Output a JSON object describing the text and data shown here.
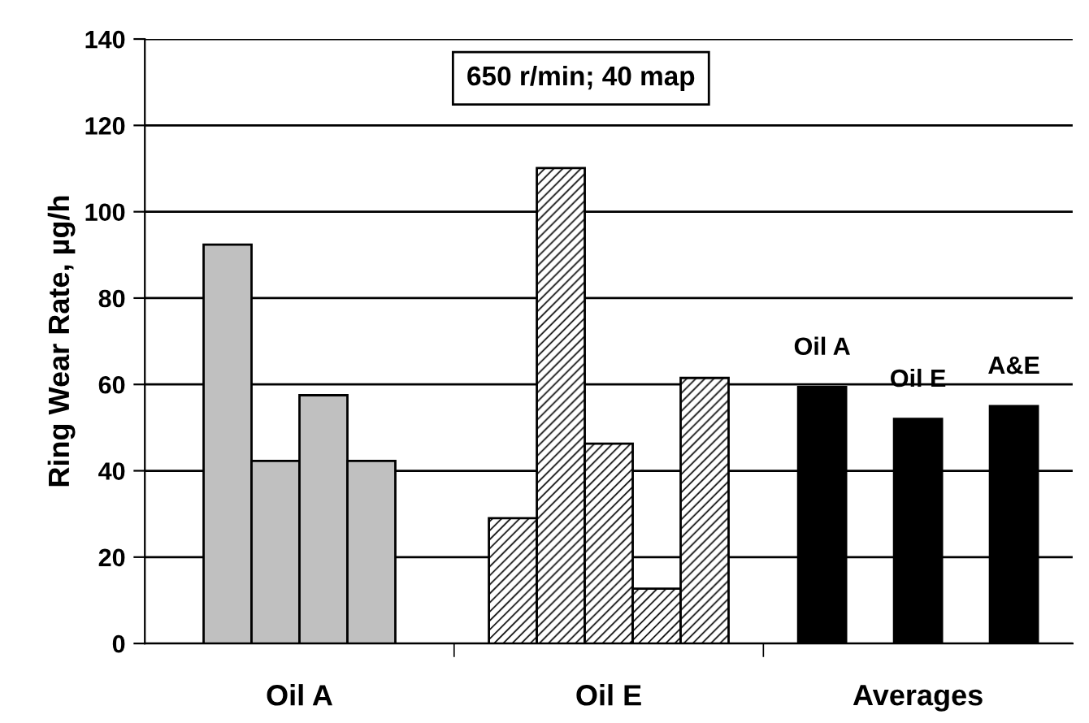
{
  "chart_data": {
    "type": "bar",
    "ylabel": "Ring Wear Rate, µg/h",
    "annotations": [
      "650 r/min; 40 map"
    ],
    "categories": [
      "Oil A",
      "Oil E",
      "Averages"
    ],
    "ylim": [
      0,
      140
    ],
    "yticks": [
      0,
      20,
      40,
      60,
      80,
      100,
      120,
      140
    ],
    "grid": "y",
    "series": [
      {
        "colors": [
          "#c0c0c0",
          "#000000",
          "#000000"
        ],
        "values": [
          92.4,
          29,
          59.4
        ],
        "value_labels": [
          null,
          null,
          "Oil A"
        ]
      },
      {
        "colors": [
          "#c0c0c0",
          "#000000",
          "#000000"
        ],
        "values": [
          42.3,
          110.1,
          52
        ],
        "value_labels": [
          null,
          null,
          "Oil E"
        ]
      },
      {
        "colors": [
          "#c0c0c0",
          "#000000",
          "#000000"
        ],
        "values": [
          57.5,
          46.3,
          55
        ],
        "value_labels": [
          null,
          null,
          "A&E"
        ]
      },
      {
        "colors": [
          "#c0c0c0",
          "#000000",
          null
        ],
        "values": [
          42.3,
          12.7,
          null
        ]
      },
      {
        "colors": [
          null,
          "#000000",
          null
        ],
        "values": [
          null,
          61.5,
          null
        ]
      }
    ]
  }
}
